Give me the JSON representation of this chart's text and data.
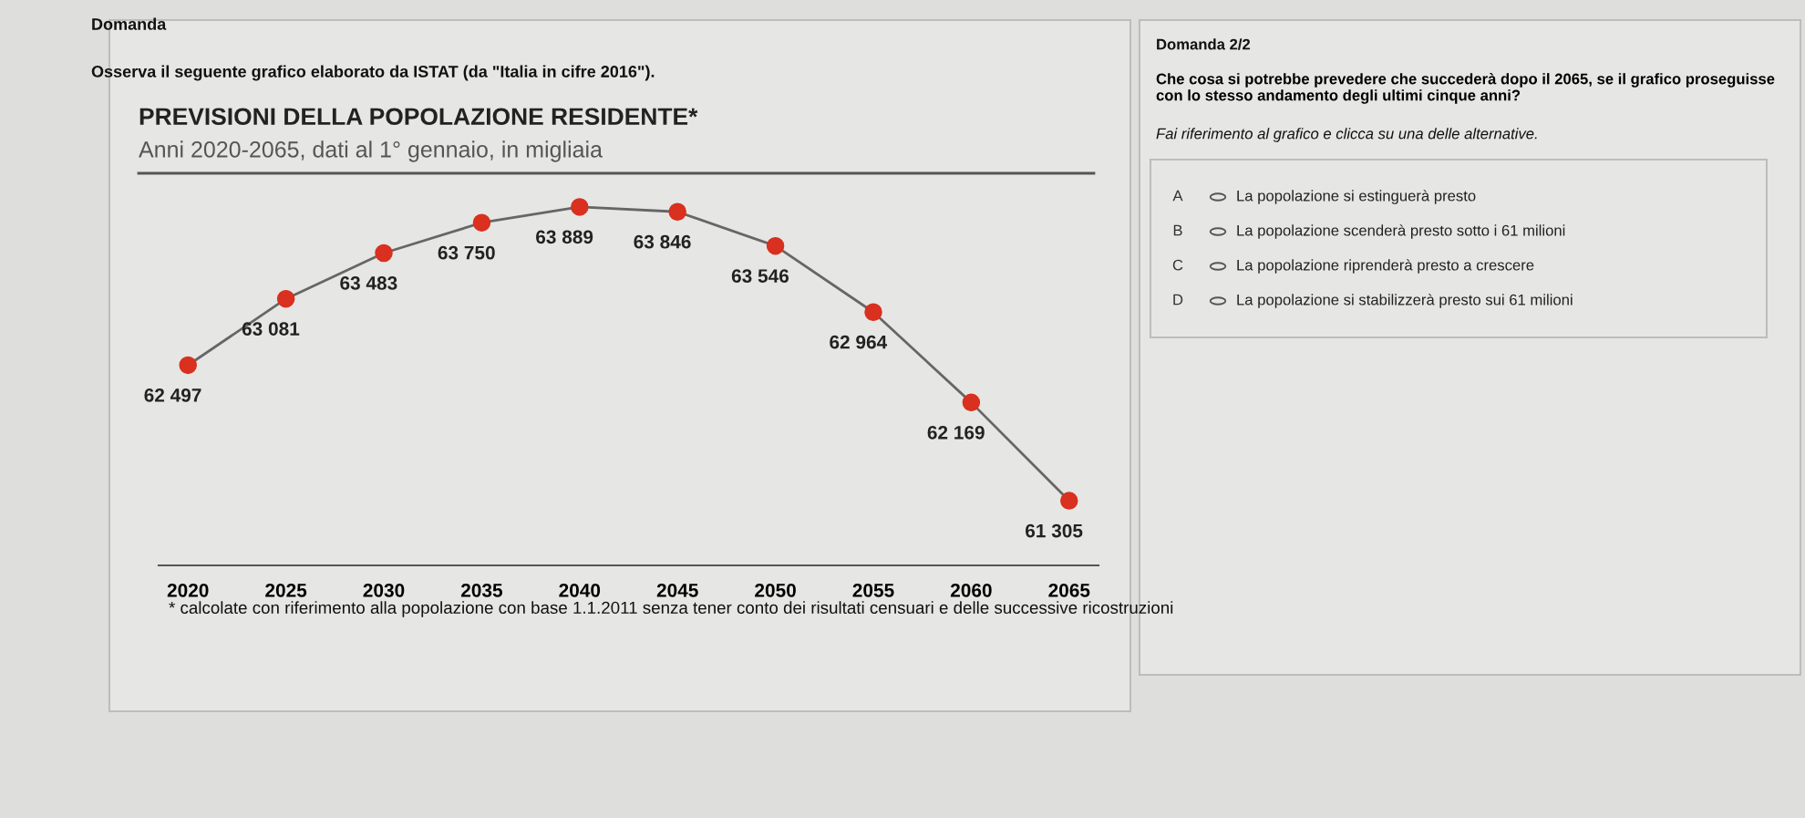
{
  "chart_data": {
    "type": "line",
    "title": "PREVISIONI DELLA POPOLAZIONE RESIDENTE*",
    "subtitle": "Anni 2020-2065, dati al 1° gennaio, in migliaia",
    "categories": [
      "2020",
      "2025",
      "2030",
      "2035",
      "2040",
      "2045",
      "2050",
      "2055",
      "2060",
      "2065"
    ],
    "series": [
      {
        "color": "#666666",
        "colors": [
          "#d9301f",
          "#d9301f",
          "#d9301f",
          "#d9301f",
          "#d9301f",
          "#d9301f",
          "#d9301f",
          "#d9301f",
          "#d9301f",
          "#d9301f"
        ],
        "values": [
          62497,
          63081,
          63483,
          63750,
          63889,
          63846,
          63546,
          62964,
          62169,
          61305
        ],
        "value_labels": [
          "62 497",
          "63 081",
          "63 483",
          "63 750",
          "63 889",
          "63 846",
          "63 546",
          "62 964",
          "62 169",
          "61 305"
        ]
      }
    ],
    "marker": "circle",
    "line_style": "solid",
    "tick_labels": "x",
    "annotations": [
      "Domanda",
      "Osserva il seguente grafico elaborato da ISTAT (da \"Italia in cifre 2016\").",
      "* calcolate con riferimento alla popolazione con base 1.1.2011 senza tener conto dei risultati censuari e delle successive ricostruzioni",
      "Domanda 2/2",
      "Che cosa si potrebbe prevedere che succederà dopo il 2065, se il grafico proseguisse con lo stesso andamento degli ultimi cinque anni?",
      "Fai riferimento al grafico e clicca su una delle alternative.",
      "A",
      "La popolazione si estinguerà presto",
      "B",
      "La popolazione scenderà presto sotto i 61 milioni",
      "C",
      "La popolazione riprenderà presto a crescere",
      "D",
      "La popolazione si stabilizzerà presto sui 61 milioni"
    ]
  }
}
